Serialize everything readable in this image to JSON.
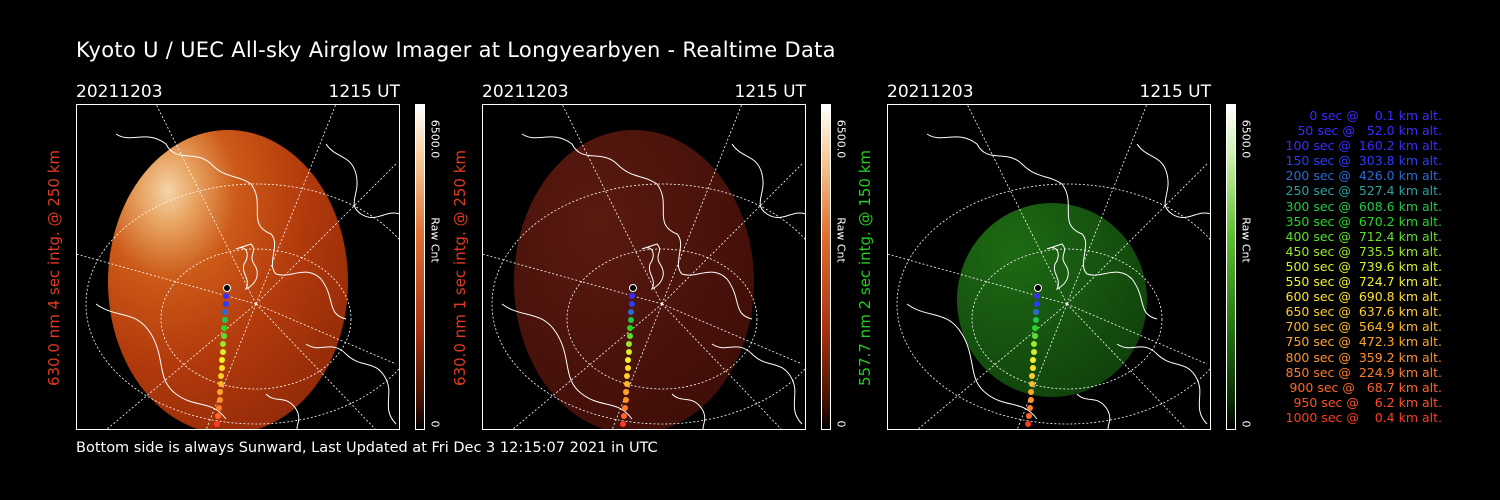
{
  "title": "Kyoto U / UEC All-sky Airglow Imager at Longyearbyen - Realtime Data",
  "footer": "Bottom side is always Sunward, Last Updated at Fri Dec  3 12:15:07 2021 in UTC",
  "panels": [
    {
      "date": "20211203",
      "time": "1215 UT",
      "label": "630.0 nm  4 sec intg. @ 250 km",
      "label_color": "#e03a22",
      "cbar_max": "6500.0",
      "cbar_min": "0",
      "cbar_unit": "Raw Cnt",
      "theme": "red-bright"
    },
    {
      "date": "20211203",
      "time": "1215 UT",
      "label": "630.0 nm  1 sec intg. @ 250 km",
      "label_color": "#e03a22",
      "cbar_max": "6500.0",
      "cbar_min": "0",
      "cbar_unit": "Raw Cnt",
      "theme": "red-dark"
    },
    {
      "date": "20211203",
      "time": "1215 UT",
      "label": "557.7 nm  2 sec intg. @ 150 km",
      "label_color": "#22cc22",
      "cbar_max": "6500.0",
      "cbar_min": "0",
      "cbar_unit": "Raw Cnt",
      "theme": "green"
    }
  ],
  "legend": [
    {
      "text": "0 sec @    0.1 km alt.",
      "color": "#3a2cff"
    },
    {
      "text": "50 sec @   52.0 km alt.",
      "color": "#3a2cff"
    },
    {
      "text": "100 sec @  160.2 km alt.",
      "color": "#3a2cff"
    },
    {
      "text": "150 sec @  303.8 km alt.",
      "color": "#2c3cff"
    },
    {
      "text": "200 sec @  426.0 km alt.",
      "color": "#2c6ad8"
    },
    {
      "text": "250 sec @  527.4 km alt.",
      "color": "#2aa0a0"
    },
    {
      "text": "300 sec @  608.6 km alt.",
      "color": "#22c84a"
    },
    {
      "text": "350 sec @  670.2 km alt.",
      "color": "#22d822"
    },
    {
      "text": "400 sec @  712.4 km alt.",
      "color": "#5ae22a"
    },
    {
      "text": "450 sec @  735.5 km alt.",
      "color": "#9ae82a"
    },
    {
      "text": "500 sec @  739.6 km alt.",
      "color": "#d8ee2a"
    },
    {
      "text": "550 sec @  724.7 km alt.",
      "color": "#f2f22a"
    },
    {
      "text": "600 sec @  690.8 km alt.",
      "color": "#ffe02a"
    },
    {
      "text": "650 sec @  637.6 km alt.",
      "color": "#ffcc2a"
    },
    {
      "text": "700 sec @  564.9 km alt.",
      "color": "#ffb82a"
    },
    {
      "text": "750 sec @  472.3 km alt.",
      "color": "#ffa42a"
    },
    {
      "text": "800 sec @  359.2 km alt.",
      "color": "#ff902a"
    },
    {
      "text": "850 sec @  224.9 km alt.",
      "color": "#ff7c2a"
    },
    {
      "text": "900 sec @   68.7 km alt.",
      "color": "#ff662a"
    },
    {
      "text": "950 sec @    6.2 km alt.",
      "color": "#ff5028"
    },
    {
      "text": "1000 sec @    0.4 km alt.",
      "color": "#ff3a22"
    }
  ]
}
